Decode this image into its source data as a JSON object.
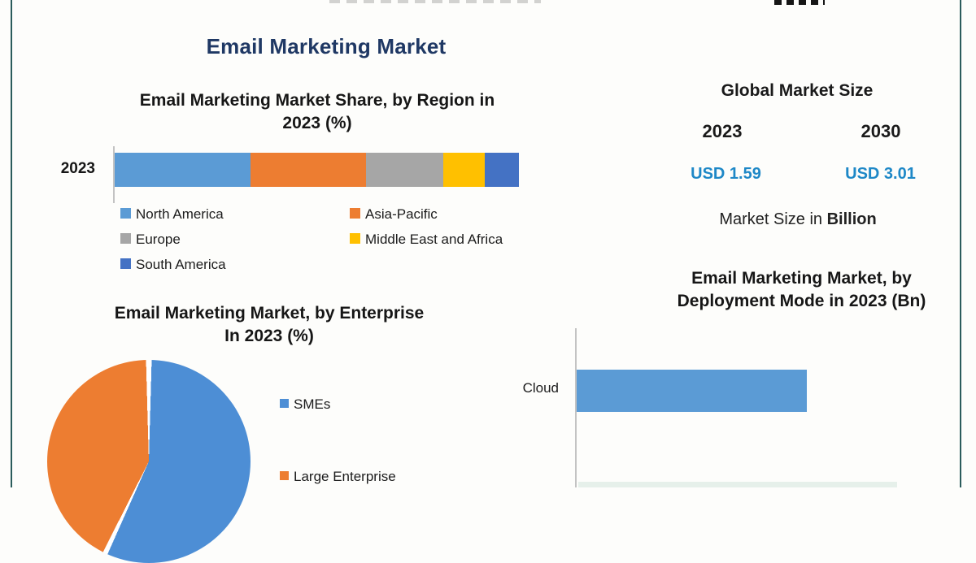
{
  "page": {
    "main_title": "Email Marketing Market",
    "title_color": "#1F3864",
    "frame_border_color": "#2B5C5C",
    "background": "#FDFDFB"
  },
  "market_size_panel": {
    "heading": "Global Market Size",
    "columns": [
      {
        "year": "2023",
        "value": "USD 1.59"
      },
      {
        "year": "2030",
        "value": "USD 3.01"
      }
    ],
    "caption_prefix": "Market Size in ",
    "caption_bold": "Billion",
    "value_color": "#1E88C7"
  },
  "chart_data": [
    {
      "type": "bar",
      "subtype": "stacked-horizontal",
      "title": "Email Marketing Market Share, by Region in 2023 (%)",
      "title_lines": [
        "Email Marketing Market Share, by Region in",
        "2023 (%)"
      ],
      "categories": [
        "2023"
      ],
      "units": "%",
      "legend_position": "bottom",
      "series": [
        {
          "name": "North America",
          "values": [
            33.5
          ],
          "color": "#5B9BD5"
        },
        {
          "name": "Asia-Pacific",
          "values": [
            28.7
          ],
          "color": "#ED7D31"
        },
        {
          "name": "Europe",
          "values": [
            19.1
          ],
          "color": "#A6A6A6"
        },
        {
          "name": "Middle East and Africa",
          "values": [
            10.2
          ],
          "color": "#FFC000"
        },
        {
          "name": "South America",
          "values": [
            8.5
          ],
          "color": "#4472C4"
        }
      ]
    },
    {
      "type": "pie",
      "title": "Email Marketing Market, by Enterprise In 2023 (%)",
      "title_lines": [
        "Email Marketing Market, by Enterprise",
        "In 2023 (%)"
      ],
      "units": "%",
      "legend_position": "right",
      "start_angle_deg": 0,
      "slices": [
        {
          "label": "SMEs",
          "value": 57,
          "color": "#4D8ED5"
        },
        {
          "label": "Large Enterprise",
          "value": 43,
          "color": "#ED7D31"
        }
      ]
    },
    {
      "type": "bar",
      "subtype": "horizontal",
      "title": "Email Marketing Market, by Deployment Mode in 2023 (Bn)",
      "title_lines": [
        "Email Marketing Market, by",
        "Deployment Mode in 2023 (Bn)"
      ],
      "categories": [
        "Cloud"
      ],
      "units": "Bn",
      "series": [
        {
          "name": "Cloud",
          "bar_fraction_of_axis": 0.6,
          "color": "#5B9BD5"
        }
      ]
    }
  ]
}
